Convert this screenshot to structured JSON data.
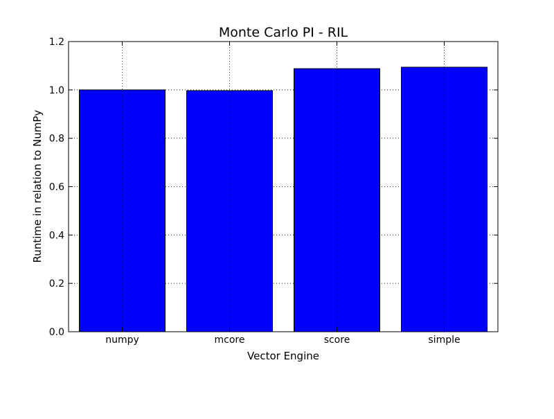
{
  "chart_data": {
    "type": "bar",
    "title": "Monte Carlo PI - RIL",
    "xlabel": "Vector Engine",
    "ylabel": "Runtime in relation to NumPy",
    "categories": [
      "numpy",
      "mcore",
      "score",
      "simple"
    ],
    "values": [
      1.0,
      0.997,
      1.088,
      1.094
    ],
    "ylim": [
      0,
      1.2
    ],
    "yticks": [
      "0.0",
      "0.2",
      "0.4",
      "0.6",
      "0.8",
      "1.0",
      "1.2"
    ],
    "grid": true,
    "legend": "none",
    "bar_color": "#0000ff",
    "edge_color": "#000000"
  }
}
